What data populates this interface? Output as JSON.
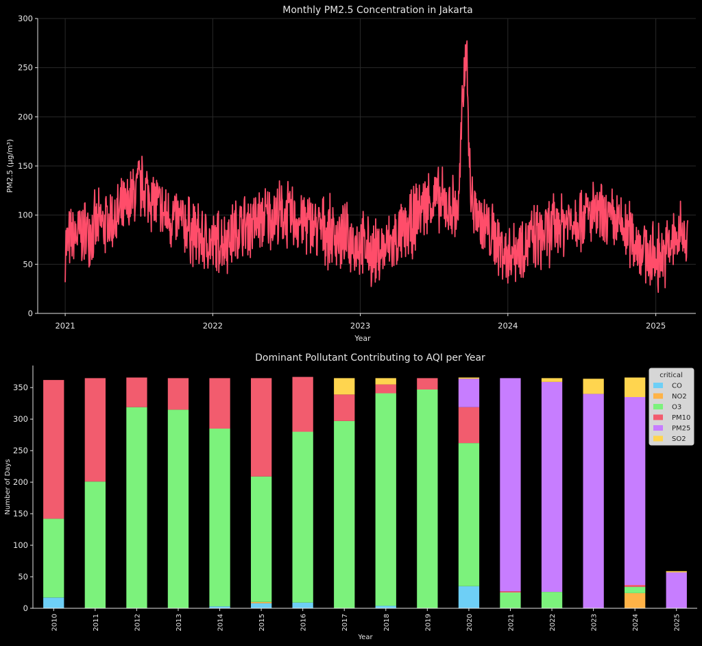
{
  "chart_data": [
    {
      "type": "line",
      "title": "Monthly PM2.5 Concentration in Jakarta",
      "xlabel": "Year",
      "ylabel": "PM2.5 (µg/m³)",
      "ylim": [
        0,
        300
      ],
      "yticks": [
        0,
        50,
        100,
        150,
        200,
        250,
        300
      ],
      "xlim": [
        "2020-10-25",
        "2025-04-10"
      ],
      "xticks": [
        "2021",
        "2022",
        "2023",
        "2024",
        "2025"
      ],
      "grid": true,
      "colors": {
        "line": "#ff4d6a"
      },
      "series": [
        {
          "x": [
            "2021-01-01",
            "2021-02-01",
            "2021-03-01",
            "2021-04-01",
            "2021-05-01",
            "2021-06-01",
            "2021-07-01",
            "2021-08-01",
            "2021-09-01",
            "2021-10-01",
            "2021-11-01",
            "2021-12-01",
            "2022-01-01",
            "2022-02-01",
            "2022-03-01",
            "2022-04-01",
            "2022-05-01",
            "2022-06-01",
            "2022-07-01",
            "2022-08-01",
            "2022-09-01",
            "2022-10-01",
            "2022-11-01",
            "2022-12-01",
            "2023-01-01",
            "2023-02-01",
            "2023-03-01",
            "2023-04-01",
            "2023-05-01",
            "2023-06-01",
            "2023-07-01",
            "2023-08-01",
            "2023-09-01",
            "2023-09-10",
            "2023-09-20",
            "2023-10-01",
            "2023-11-01",
            "2023-12-01",
            "2024-01-01",
            "2024-02-01",
            "2024-03-01",
            "2024-04-01",
            "2024-05-01",
            "2024-06-01",
            "2024-07-01",
            "2024-08-01",
            "2024-09-01",
            "2024-10-01",
            "2024-11-01",
            "2024-12-01",
            "2025-01-01",
            "2025-02-01",
            "2025-03-01"
          ],
          "y": [
            70,
            80,
            85,
            90,
            95,
            105,
            130,
            120,
            100,
            95,
            88,
            75,
            70,
            75,
            85,
            90,
            95,
            100,
            100,
            95,
            90,
            85,
            80,
            75,
            70,
            60,
            65,
            75,
            85,
            110,
            115,
            110,
            105,
            200,
            280,
            115,
            90,
            75,
            60,
            70,
            75,
            80,
            90,
            95,
            100,
            100,
            95,
            90,
            80,
            65,
            55,
            65,
            80
          ]
        }
      ]
    },
    {
      "type": "bar",
      "stacked": true,
      "title": "Dominant Pollutant Contributing to AQI per Year",
      "xlabel": "Year",
      "ylabel": "Number of Days",
      "ylim": [
        0,
        385
      ],
      "yticks": [
        0,
        50,
        100,
        150,
        200,
        250,
        300,
        350
      ],
      "legend": {
        "title": "critical",
        "position": "top-right"
      },
      "categories": [
        "2010",
        "2011",
        "2012",
        "2013",
        "2014",
        "2015",
        "2016",
        "2017",
        "2018",
        "2019",
        "2020",
        "2021",
        "2022",
        "2023",
        "2024",
        "2025"
      ],
      "series": [
        {
          "name": "CO",
          "color": "#6ecff6",
          "values": [
            17,
            0,
            0,
            0,
            3,
            8,
            9,
            0,
            4,
            0,
            35,
            0,
            0,
            0,
            0,
            0
          ]
        },
        {
          "name": "NO2",
          "color": "#ffb347",
          "values": [
            0,
            0,
            0,
            0,
            0,
            2,
            0,
            0,
            0,
            0,
            0,
            0,
            0,
            0,
            24,
            0
          ]
        },
        {
          "name": "O3",
          "color": "#7cf27c",
          "values": [
            125,
            201,
            319,
            315,
            282,
            199,
            271,
            297,
            337,
            347,
            227,
            25,
            26,
            0,
            10,
            0
          ]
        },
        {
          "name": "PM10",
          "color": "#f25c6e",
          "values": [
            220,
            164,
            47,
            50,
            80,
            156,
            87,
            42,
            14,
            18,
            57,
            2,
            0,
            0,
            3,
            0
          ]
        },
        {
          "name": "PM25",
          "color": "#c77dff",
          "values": [
            0,
            0,
            0,
            0,
            0,
            0,
            0,
            0,
            0,
            0,
            45,
            338,
            333,
            340,
            298,
            57
          ]
        },
        {
          "name": "SO2",
          "color": "#ffd54f",
          "values": [
            0,
            0,
            0,
            0,
            0,
            0,
            0,
            26,
            10,
            0,
            2,
            0,
            6,
            24,
            31,
            2
          ]
        }
      ]
    }
  ]
}
